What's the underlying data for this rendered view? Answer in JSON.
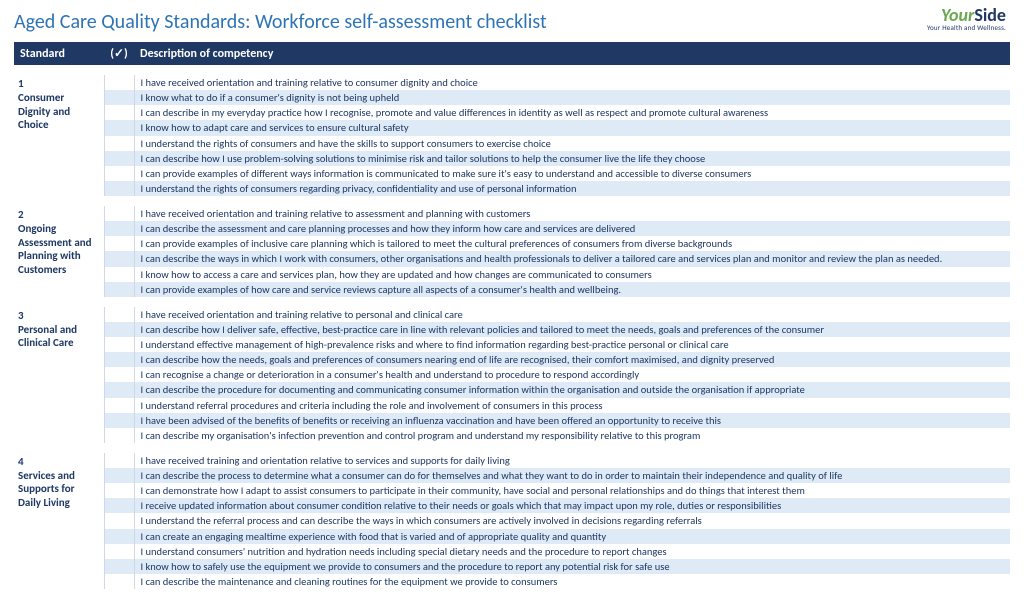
{
  "title": "Aged Care Quality Standards: Workforce self-assessment checklist",
  "logo": {
    "part1": "Your",
    "part2": "Side",
    "sub": "Your Health and Wellness."
  },
  "headers": {
    "standard": "Standard",
    "check": "(✓)",
    "desc": "Description of competency"
  },
  "colors": {
    "title": "#2E74B5",
    "headerBg": "#1f3864",
    "headerText": "#ffffff",
    "bodyText": "#1f3864",
    "altRow": "#deeaf6",
    "logoGreen": "#6aa84f"
  },
  "standards": [
    {
      "num": "1",
      "name": "Consumer Dignity and Choice",
      "items": [
        "I have received orientation and training relative to consumer dignity and choice",
        "I know what to do if a consumer's dignity is not being upheld",
        "I can describe in my everyday practice how I recognise, promote and value differences in identity as well as respect and promote cultural awareness",
        "I know how to adapt care and services to ensure cultural safety",
        "I understand the rights of consumers and have the skills to support consumers to exercise choice",
        "I can describe how I use problem-solving solutions to minimise risk and tailor solutions to help the consumer live the life they choose",
        "I can provide examples of different ways information is communicated to make sure it's easy to understand and accessible to diverse consumers",
        "I understand the rights of consumers regarding privacy, confidentiality and use of personal information"
      ]
    },
    {
      "num": "2",
      "name": "Ongoing Assessment and Planning with Customers",
      "items": [
        "I have received orientation and training relative to assessment and planning with customers",
        "I can describe the assessment and care planning processes and how they inform how care and services are delivered",
        "I can provide examples of inclusive care planning which is tailored to meet the cultural preferences of consumers from diverse backgrounds",
        "I can describe the ways in which I work with consumers, other organisations and health professionals to deliver a tailored care and services plan and monitor and review the plan as needed.",
        "I know how to access a care and services plan, how they are updated and how changes are communicated to consumers",
        "I can provide examples of how care and service reviews capture all aspects of a consumer's health and wellbeing."
      ]
    },
    {
      "num": "3",
      "name": "Personal and Clinical Care",
      "items": [
        "I have received orientation and training relative to personal and clinical care",
        "I can describe how I deliver safe, effective, best-practice care in line with relevant policies and tailored to meet the needs, goals and preferences of the consumer",
        "I understand effective management of high-prevalence risks and where to find information regarding best-practice personal or clinical care",
        "I can describe how the needs, goals and preferences of consumers nearing end of life are recognised, their comfort maximised, and dignity preserved",
        "I can recognise a change or deterioration in a consumer's health and understand to procedure to respond accordingly",
        "I can describe the procedure for documenting and communicating consumer information within the organisation and outside the organisation if appropriate",
        "I understand referral procedures and criteria including the role and involvement of consumers in this process",
        "I have been advised of the benefits of benefits or receiving an influenza vaccination and have been offered an opportunity to receive this",
        "I can describe my organisation's infection prevention and control program and understand my responsibility relative to this program"
      ]
    },
    {
      "num": "4",
      "name": "Services and Supports for Daily Living",
      "items": [
        "I have received training and orientation relative to services and supports for daily living",
        "I can describe the process to determine what a consumer can do for themselves and what they want to do in order to maintain their independence and quality of life",
        "I can demonstrate how I adapt to assist consumers to participate in their community, have social and personal relationships and do things that interest them",
        "I receive updated information about consumer condition relative to their needs or goals which that may impact upon my role, duties or responsibilities",
        "I understand the referral process and can describe the ways in which consumers are actively involved in decisions regarding referrals",
        "I can create an engaging mealtime experience with food that is varied and of appropriate quality and quantity",
        "I understand consumers' nutrition and hydration needs including special dietary needs and the procedure to report changes",
        "I know how to safely use the equipment we provide to consumers and the procedure to report any potential risk for safe use",
        "I can describe the maintenance and cleaning routines for the equipment we provide to consumers"
      ]
    }
  ]
}
